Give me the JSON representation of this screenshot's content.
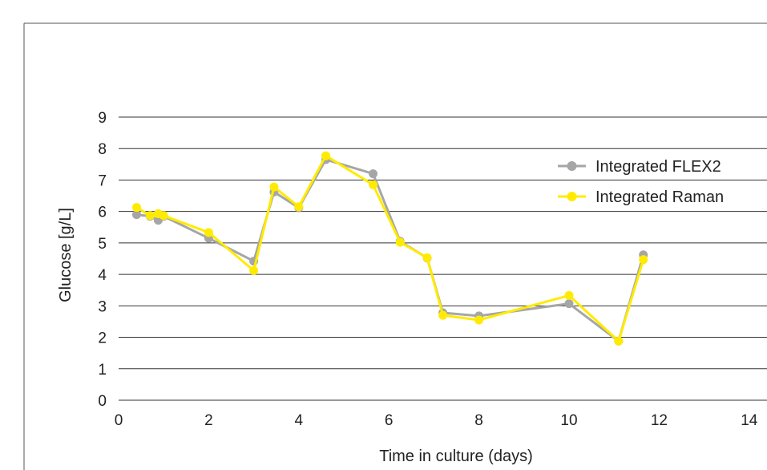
{
  "chart_data": {
    "type": "line",
    "title": "",
    "xlabel": "Time in culture (days)",
    "ylabel": "Glucose [g/L]",
    "xlim": [
      0,
      14
    ],
    "ylim": [
      0,
      9
    ],
    "x_ticks": [
      "0",
      "2",
      "4",
      "6",
      "8",
      "10",
      "12",
      "14"
    ],
    "y_ticks": [
      "0",
      "1",
      "2",
      "3",
      "4",
      "5",
      "6",
      "7",
      "8",
      "9"
    ],
    "grid": "horizontal",
    "legend_position": "right",
    "series": [
      {
        "name": "Integrated FLEX2",
        "color": "#a6a6a6",
        "points": [
          [
            0.4,
            5.9
          ],
          [
            0.7,
            5.85
          ],
          [
            0.88,
            5.72
          ],
          [
            1.0,
            5.85
          ],
          [
            2.0,
            5.15
          ],
          [
            3.0,
            4.42
          ],
          [
            3.45,
            6.62
          ],
          [
            4.0,
            6.12
          ],
          [
            4.6,
            7.65
          ],
          [
            5.65,
            7.2
          ],
          [
            6.25,
            5.05
          ],
          [
            6.85,
            4.52
          ],
          [
            7.2,
            2.78
          ],
          [
            8.0,
            2.68
          ],
          [
            10.0,
            3.07
          ],
          [
            11.1,
            1.88
          ],
          [
            11.65,
            4.62
          ]
        ]
      },
      {
        "name": "Integrated Raman",
        "color": "#ffeb00",
        "points": [
          [
            0.4,
            6.13
          ],
          [
            0.7,
            5.87
          ],
          [
            0.88,
            5.93
          ],
          [
            1.0,
            5.87
          ],
          [
            2.0,
            5.33
          ],
          [
            3.0,
            4.12
          ],
          [
            3.45,
            6.78
          ],
          [
            4.0,
            6.15
          ],
          [
            4.6,
            7.77
          ],
          [
            5.65,
            6.85
          ],
          [
            6.25,
            5.02
          ],
          [
            6.85,
            4.53
          ],
          [
            7.2,
            2.7
          ],
          [
            8.0,
            2.55
          ],
          [
            10.0,
            3.33
          ],
          [
            11.1,
            1.88
          ],
          [
            11.65,
            4.47
          ]
        ]
      }
    ]
  }
}
